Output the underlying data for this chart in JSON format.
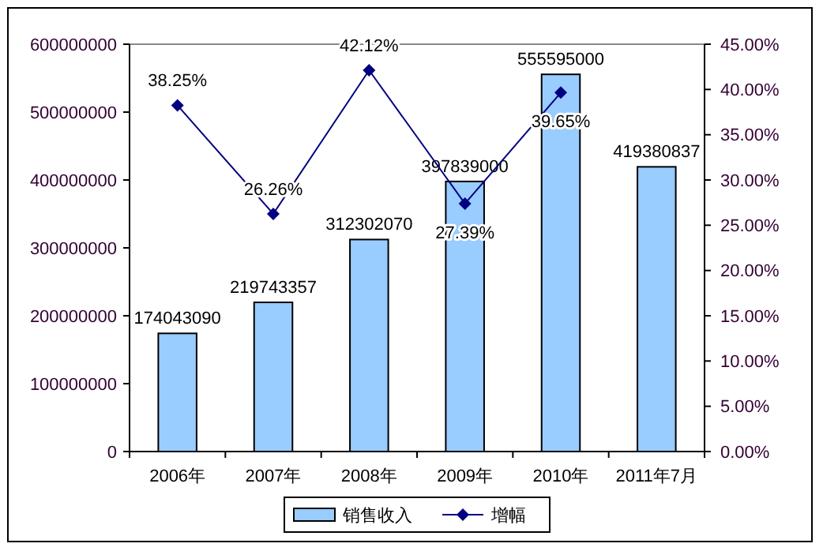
{
  "chart_data": {
    "type": "bar",
    "categories": [
      "2006年",
      "2007年",
      "2008年",
      "2009年",
      "2010年",
      "2011年7月"
    ],
    "series": [
      {
        "name": "销售收入",
        "color": "#99ccff",
        "values": [
          174043090,
          219743357,
          312302070,
          397839000,
          555595000,
          419380837
        ],
        "value_labels": [
          "174043090",
          "219743357",
          "312302070",
          "397839000",
          "555595000",
          "419380837"
        ]
      },
      {
        "name": "增幅",
        "type": "line",
        "axis": "y2",
        "color": "#000080",
        "marker": "diamond",
        "values": [
          38.25,
          26.26,
          42.12,
          27.39,
          39.65,
          null
        ],
        "value_labels": [
          "38.25%",
          "26.26%",
          "42.12%",
          "27.39%",
          "39.65%",
          null
        ]
      }
    ],
    "ylim": [
      0,
      600000000
    ],
    "yticks": [
      0,
      100000000,
      200000000,
      300000000,
      400000000,
      500000000,
      600000000
    ],
    "y2lim": [
      0,
      45
    ],
    "y2ticks": [
      {
        "value": 0,
        "label": "0.00%"
      },
      {
        "value": 5,
        "label": "5.00%"
      },
      {
        "value": 10,
        "label": "10.00%"
      },
      {
        "value": 15,
        "label": "15.00%"
      },
      {
        "value": 20,
        "label": "20.00%"
      },
      {
        "value": 25,
        "label": "25.00%"
      },
      {
        "value": 30,
        "label": "30.00%"
      },
      {
        "value": 35,
        "label": "35.00%"
      },
      {
        "value": 40,
        "label": "40.00%"
      },
      {
        "value": 45,
        "label": "45.00%"
      }
    ],
    "legend": "bottom",
    "grid": false
  }
}
